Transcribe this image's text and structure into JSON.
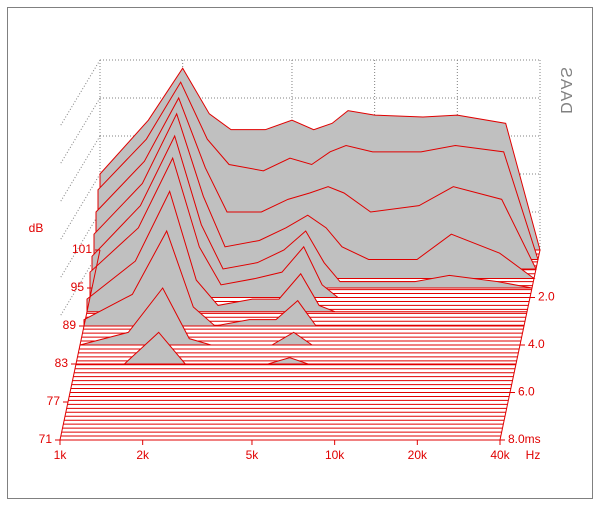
{
  "chart_data": {
    "type": "waterfall",
    "x_label": "Hz",
    "y_label": "dB",
    "watermark": "DAAS",
    "color": "#e00000",
    "fill": "#c0c0c0",
    "log_x": true,
    "grid": true,
    "x": [
      1000,
      1500,
      2000,
      2500,
      3000,
      4000,
      5000,
      6000,
      7000,
      8000,
      10000,
      15000,
      20000,
      30000,
      40000
    ],
    "xlim": [
      1000,
      40000
    ],
    "xticks": [
      {
        "value": 1000,
        "label": "1k"
      },
      {
        "value": 2000,
        "label": "2k"
      },
      {
        "value": 5000,
        "label": "5k"
      },
      {
        "value": 10000,
        "label": "10k"
      },
      {
        "value": 20000,
        "label": "20k"
      },
      {
        "value": 40000,
        "label": "40k"
      }
    ],
    "ylim": [
      71,
      101
    ],
    "yticks": [
      71,
      77,
      83,
      89,
      95,
      101
    ],
    "tlim": [
      0,
      8
    ],
    "tticks": [
      {
        "value": 2,
        "label": "2.0"
      },
      {
        "value": 4,
        "label": "4.0"
      },
      {
        "value": 6,
        "label": "6.0"
      },
      {
        "value": 8,
        "label": "8.0ms"
      }
    ],
    "series": [
      {
        "time": 0,
        "values": [
          83,
          91.5,
          99.7,
          92.5,
          90,
          90,
          91.5,
          90,
          91,
          93,
          92.3,
          92,
          92.3,
          91,
          71
        ]
      },
      {
        "time": 0.4,
        "values": [
          82,
          90,
          99,
          90,
          86,
          85,
          87,
          86,
          88,
          89,
          88,
          88,
          89,
          88,
          71
        ]
      },
      {
        "time": 0.8,
        "values": [
          80,
          88,
          98,
          87,
          80,
          80,
          82,
          83,
          84,
          83,
          80,
          81,
          84,
          82,
          71
        ]
      },
      {
        "time": 1.2,
        "values": [
          78,
          86,
          97,
          84,
          76,
          77,
          79,
          81,
          79,
          76,
          74,
          74,
          78,
          75,
          71
        ]
      },
      {
        "time": 1.6,
        "values": [
          76,
          84,
          95,
          81,
          74,
          75,
          77,
          80,
          75,
          72,
          72,
          72,
          73,
          72,
          71
        ]
      },
      {
        "time": 2.0,
        "values": [
          75,
          82,
          93,
          79,
          73,
          74,
          75,
          79,
          73,
          71,
          71,
          71,
          71,
          71,
          71
        ]
      },
      {
        "time": 2.6,
        "values": [
          73,
          79,
          90,
          76,
          72,
          73,
          73,
          77,
          72,
          71,
          71,
          71,
          71,
          71,
          71
        ]
      },
      {
        "time": 3.2,
        "values": [
          72,
          76,
          86,
          74,
          71,
          72,
          72,
          75,
          71,
          71,
          71,
          71,
          71,
          71,
          71
        ]
      },
      {
        "time": 4.0,
        "values": [
          71,
          73,
          80,
          72,
          71,
          71,
          71,
          73,
          71,
          71,
          71,
          71,
          71,
          71,
          71
        ]
      },
      {
        "time": 4.8,
        "values": [
          71,
          71,
          76,
          71,
          71,
          71,
          71,
          72,
          71,
          71,
          71,
          71,
          71,
          71,
          71
        ]
      }
    ]
  }
}
